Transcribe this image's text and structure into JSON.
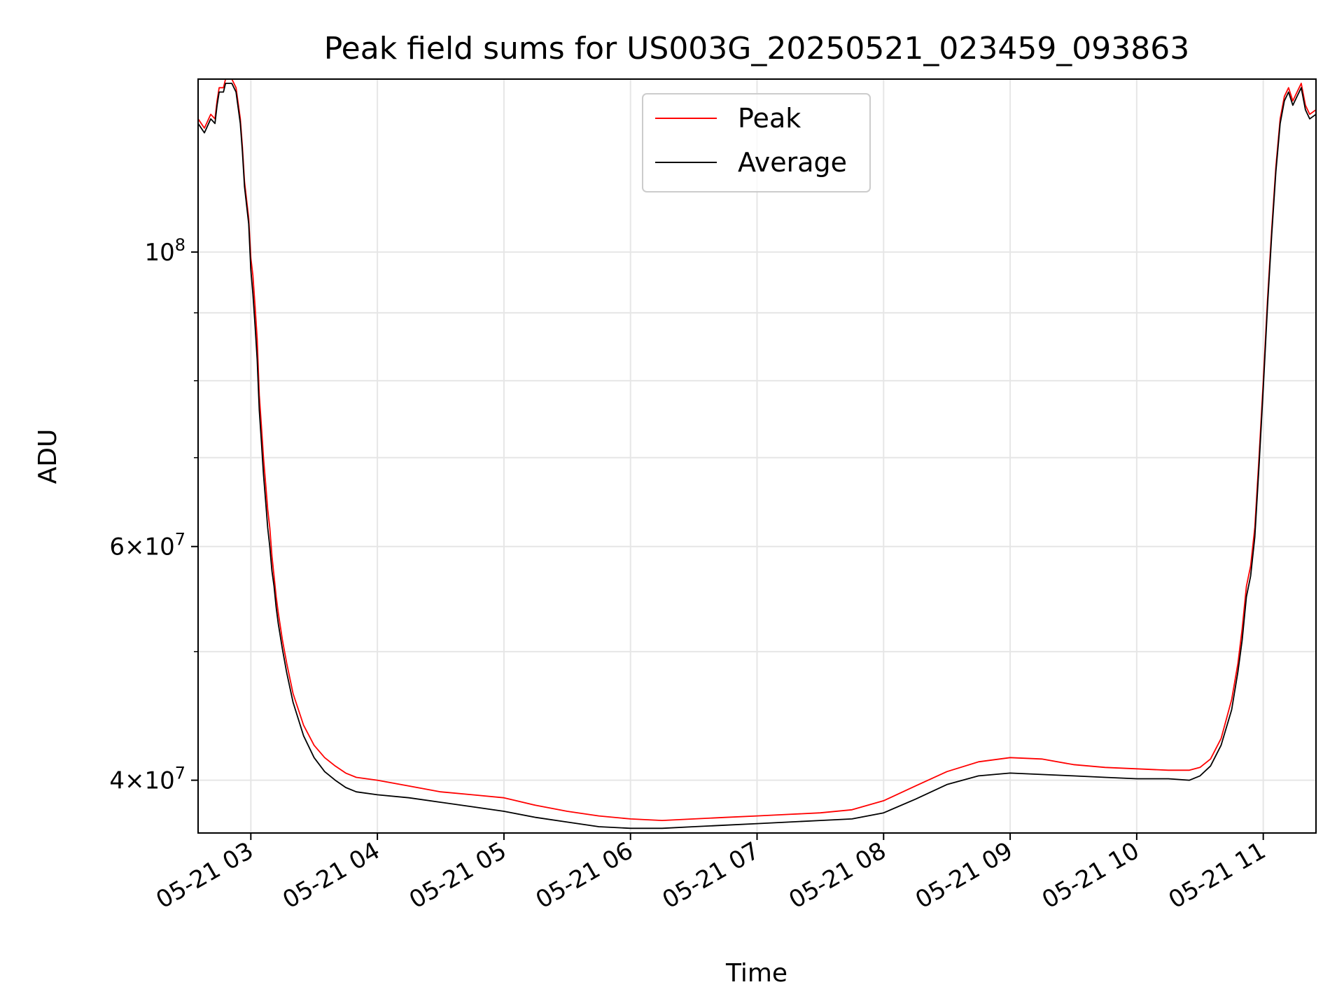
{
  "chart_data": {
    "type": "line",
    "title": "Peak field sums for US003G_20250521_023459_093863",
    "xlabel": "Time",
    "ylabel": "ADU",
    "x_axis": {
      "kind": "datetime",
      "range": [
        "2025-05-21 02:35",
        "2025-05-21 11:25"
      ],
      "ticks": [
        {
          "value": "2025-05-21 03:00",
          "label": "05-21 03"
        },
        {
          "value": "2025-05-21 04:00",
          "label": "05-21 04"
        },
        {
          "value": "2025-05-21 05:00",
          "label": "05-21 05"
        },
        {
          "value": "2025-05-21 06:00",
          "label": "05-21 06"
        },
        {
          "value": "2025-05-21 07:00",
          "label": "05-21 07"
        },
        {
          "value": "2025-05-21 08:00",
          "label": "05-21 08"
        },
        {
          "value": "2025-05-21 09:00",
          "label": "05-21 09"
        },
        {
          "value": "2025-05-21 10:00",
          "label": "05-21 10"
        },
        {
          "value": "2025-05-21 11:00",
          "label": "05-21 11"
        }
      ]
    },
    "y_axis": {
      "scale": "log",
      "range": [
        36500000,
        135000000
      ],
      "major_ticks": [
        {
          "value": 100000000,
          "base": "10",
          "exp": "8"
        },
        {
          "value": 60000000,
          "mant": "6",
          "base": "10",
          "exp": "7"
        },
        {
          "value": 40000000,
          "mant": "4",
          "base": "10",
          "exp": "7"
        }
      ],
      "minor_ticks": [
        50000000,
        70000000,
        80000000,
        90000000
      ]
    },
    "grid": true,
    "legend": {
      "placement": "top-center",
      "entries": [
        {
          "label": "Peak",
          "color": "#ff0000"
        },
        {
          "label": "Average",
          "color": "#000000"
        }
      ]
    },
    "series": [
      {
        "name": "Peak",
        "color": "#ff0000",
        "x": [
          "02:35",
          "02:38",
          "02:41",
          "02:43",
          "02:44",
          "02:45",
          "02:47",
          "02:48",
          "02:49",
          "02:50",
          "02:51",
          "02:53",
          "02:55",
          "02:56",
          "02:57",
          "02:59",
          "03:00",
          "03:01",
          "03:02",
          "03:03",
          "03:04",
          "03:05",
          "03:06",
          "03:07",
          "03:08",
          "03:09",
          "03:10",
          "03:11",
          "03:12",
          "03:13",
          "03:15",
          "03:17",
          "03:20",
          "03:25",
          "03:30",
          "03:35",
          "03:40",
          "03:45",
          "03:50",
          "04:00",
          "04:15",
          "04:30",
          "04:45",
          "05:00",
          "05:15",
          "05:30",
          "05:45",
          "06:00",
          "06:15",
          "06:30",
          "06:45",
          "07:00",
          "07:15",
          "07:30",
          "07:45",
          "08:00",
          "08:15",
          "08:30",
          "08:45",
          "09:00",
          "09:15",
          "09:30",
          "09:45",
          "10:00",
          "10:15",
          "10:25",
          "10:30",
          "10:35",
          "10:40",
          "10:45",
          "10:48",
          "10:50",
          "10:52",
          "10:54",
          "10:56",
          "10:58",
          "11:00",
          "11:02",
          "11:04",
          "11:06",
          "11:08",
          "11:10",
          "11:12",
          "11:14",
          "11:16",
          "11:18",
          "11:20",
          "11:22",
          "11:25"
        ],
        "y": [
          126000000,
          124000000,
          127000000,
          126000000,
          130000000,
          133000000,
          133000000,
          135000000,
          135000000,
          135000000,
          135000000,
          133000000,
          126000000,
          120000000,
          113000000,
          106000000,
          99000000,
          96000000,
          91000000,
          86000000,
          78000000,
          74000000,
          70000000,
          67000000,
          64000000,
          62000000,
          59000000,
          57000000,
          55000000,
          53500000,
          51000000,
          49000000,
          46500000,
          44000000,
          42500000,
          41600000,
          41000000,
          40500000,
          40200000,
          40000000,
          39600000,
          39200000,
          39000000,
          38800000,
          38300000,
          37900000,
          37600000,
          37400000,
          37300000,
          37400000,
          37500000,
          37600000,
          37700000,
          37800000,
          38000000,
          38600000,
          39600000,
          40600000,
          41300000,
          41600000,
          41500000,
          41100000,
          40900000,
          40800000,
          40700000,
          40700000,
          40900000,
          41500000,
          43000000,
          46000000,
          49000000,
          52000000,
          56000000,
          58000000,
          62000000,
          70000000,
          80000000,
          92000000,
          104000000,
          116000000,
          126000000,
          131000000,
          133000000,
          130000000,
          132000000,
          134000000,
          129000000,
          127000000,
          128000000
        ]
      },
      {
        "name": "Average",
        "color": "#000000",
        "x": [
          "02:35",
          "02:38",
          "02:41",
          "02:43",
          "02:44",
          "02:45",
          "02:47",
          "02:48",
          "02:49",
          "02:50",
          "02:51",
          "02:53",
          "02:55",
          "02:56",
          "02:57",
          "02:59",
          "03:00",
          "03:01",
          "03:02",
          "03:03",
          "03:04",
          "03:05",
          "03:06",
          "03:07",
          "03:08",
          "03:09",
          "03:10",
          "03:11",
          "03:12",
          "03:13",
          "03:15",
          "03:17",
          "03:20",
          "03:25",
          "03:30",
          "03:35",
          "03:40",
          "03:45",
          "03:50",
          "04:00",
          "04:15",
          "04:30",
          "04:45",
          "05:00",
          "05:15",
          "05:30",
          "05:45",
          "06:00",
          "06:15",
          "06:30",
          "06:45",
          "07:00",
          "07:15",
          "07:30",
          "07:45",
          "08:00",
          "08:15",
          "08:30",
          "08:45",
          "09:00",
          "09:15",
          "09:30",
          "09:45",
          "10:00",
          "10:15",
          "10:25",
          "10:30",
          "10:35",
          "10:40",
          "10:45",
          "10:48",
          "10:50",
          "10:52",
          "10:54",
          "10:56",
          "10:58",
          "11:00",
          "11:02",
          "11:04",
          "11:06",
          "11:08",
          "11:10",
          "11:12",
          "11:14",
          "11:16",
          "11:18",
          "11:20",
          "11:22",
          "11:25"
        ],
        "y": [
          125000000,
          123000000,
          126000000,
          125000000,
          129000000,
          132000000,
          132000000,
          134000000,
          134000000,
          134000000,
          134000000,
          132000000,
          125000000,
          119000000,
          112000000,
          105000000,
          97000000,
          93000000,
          88000000,
          83000000,
          76000000,
          72000000,
          68000000,
          65000000,
          62000000,
          60000000,
          57500000,
          56000000,
          54000000,
          52500000,
          50200000,
          48200000,
          45800000,
          43200000,
          41600000,
          40600000,
          40000000,
          39500000,
          39200000,
          39000000,
          38800000,
          38500000,
          38200000,
          37900000,
          37500000,
          37200000,
          36900000,
          36800000,
          36800000,
          36900000,
          37000000,
          37100000,
          37200000,
          37300000,
          37400000,
          37800000,
          38700000,
          39700000,
          40300000,
          40500000,
          40400000,
          40300000,
          40200000,
          40100000,
          40100000,
          40000000,
          40300000,
          41000000,
          42500000,
          45200000,
          48300000,
          51000000,
          55000000,
          57000000,
          61000000,
          69000000,
          79000000,
          91000000,
          103000000,
          115000000,
          125000000,
          130000000,
          132000000,
          129000000,
          131000000,
          133000000,
          128000000,
          126000000,
          127000000
        ]
      }
    ]
  }
}
